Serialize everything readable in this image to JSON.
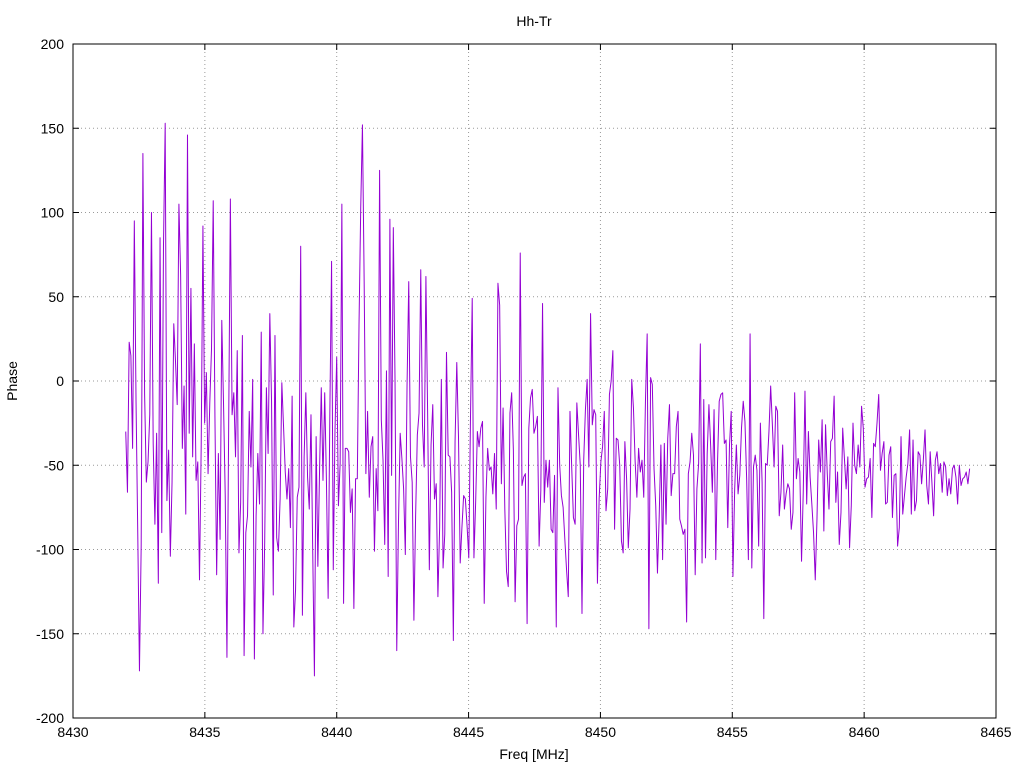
{
  "chart_data": {
    "type": "line",
    "title": "Hh-Tr",
    "xlabel": "Freq [MHz]",
    "ylabel": "Phase",
    "xlim": [
      8430,
      8465
    ],
    "ylim": [
      -200,
      200
    ],
    "xticks": [
      "8430",
      "8435",
      "8440",
      "8445",
      "8450",
      "8455",
      "8460",
      "8465"
    ],
    "yticks": [
      "200",
      "150",
      "100",
      "50",
      "0",
      "-50",
      "-100",
      "-150",
      "-200"
    ],
    "grid": true,
    "line_color": "#9400d3",
    "series": [
      {
        "x_start": 8432.0,
        "x_end": 8464.0,
        "y": [
          -30,
          -66,
          23,
          15,
          -40,
          95,
          -12,
          -90,
          -172,
          -98,
          135,
          -8,
          -60,
          -48,
          -20,
          100,
          -37,
          -85,
          -31,
          -120,
          85,
          -90,
          80,
          153,
          -71,
          -41,
          -104,
          -60,
          34,
          12,
          -14,
          105,
          63,
          -40,
          -3,
          -79,
          146,
          -31,
          55,
          -45,
          22,
          -59,
          -48,
          -118,
          -38,
          92,
          -25,
          5,
          -55,
          -13,
          19,
          107,
          -21,
          -115,
          -43,
          -94,
          36,
          -13,
          -68,
          -164,
          -28,
          108,
          -20,
          -7,
          -45,
          18,
          -102,
          -72,
          27,
          -163,
          -90,
          -80,
          -18,
          -51,
          1,
          -165,
          -80,
          -43,
          -73,
          29,
          -150,
          -96,
          -4,
          -43,
          40,
          -12,
          -127,
          27,
          -93,
          -101,
          -70,
          -1,
          -27,
          -54,
          -70,
          -52,
          -87,
          -9,
          -146,
          -124,
          -69,
          -63,
          80,
          -139,
          -45,
          -7,
          -57,
          -76,
          -20,
          -100,
          -175,
          -33,
          -110,
          -53,
          -4,
          -59,
          -7,
          -59,
          -129,
          -19,
          71,
          -112,
          -29,
          14,
          -74,
          -49,
          105,
          -132,
          -40,
          -40,
          -42,
          -78,
          -64,
          -135,
          -58,
          -58,
          33,
          103,
          152,
          59,
          -55,
          -18,
          -69,
          -39,
          -33,
          -101,
          -52,
          -77,
          125,
          -23,
          -47,
          -97,
          6,
          -116,
          96,
          -56,
          91,
          0,
          -160,
          -85,
          -31,
          -46,
          -64,
          -103,
          -3,
          59,
          -45,
          -60,
          -142,
          -80,
          -32,
          -19,
          66,
          -26,
          -51,
          62,
          -19,
          -112,
          -38,
          -14,
          -70,
          -61,
          -128,
          -87,
          1,
          -111,
          -91,
          17,
          -44,
          -45,
          -66,
          -154,
          -36,
          11,
          -33,
          -108,
          -87,
          -68,
          -70,
          -86,
          -105,
          -21,
          49,
          -105,
          -72,
          -30,
          -39,
          -28,
          -24,
          -132,
          -69,
          -40,
          -53,
          -51,
          -67,
          -43,
          -76,
          58,
          45,
          -61,
          -16,
          -76,
          -113,
          -122,
          -19,
          -7,
          -41,
          -131,
          -86,
          -82,
          76,
          -62,
          -57,
          -55,
          -144,
          -28,
          -10,
          -5,
          -31,
          -27,
          -21,
          -98,
          -65,
          46,
          -72,
          -47,
          -63,
          -47,
          -88,
          -90,
          -56,
          -146,
          -4,
          -50,
          -68,
          -75,
          -94,
          -112,
          -128,
          -18,
          -51,
          -81,
          -85,
          -13,
          -32,
          -50,
          -138,
          -47,
          -17,
          1,
          -51,
          40,
          -26,
          -17,
          -20,
          -120,
          -70,
          -48,
          -39,
          -18,
          -77,
          -64,
          -8,
          0,
          18,
          -88,
          -34,
          -35,
          -50,
          -95,
          -102,
          -36,
          -58,
          -99,
          -76,
          1,
          -16,
          -48,
          -69,
          -40,
          -54,
          -47,
          -69,
          -12,
          28,
          -147,
          2,
          -2,
          -52,
          -74,
          -114,
          -81,
          -38,
          -106,
          -37,
          -85,
          -34,
          -14,
          -68,
          -55,
          -55,
          -27,
          -18,
          -82,
          -86,
          -91,
          -88,
          -143,
          -55,
          -48,
          -31,
          -44,
          -115,
          -64,
          -49,
          22,
          -108,
          -11,
          -105,
          -43,
          -14,
          -38,
          -66,
          -17,
          -106,
          -49,
          -12,
          -8,
          -7,
          -37,
          -35,
          -87,
          -38,
          -18,
          -116,
          -65,
          -38,
          -67,
          -56,
          -28,
          -12,
          -24,
          -58,
          -106,
          28,
          -111,
          -51,
          -44,
          -53,
          -98,
          -25,
          -60,
          -141,
          -49,
          -50,
          -30,
          -3,
          -26,
          -51,
          -15,
          -18,
          -80,
          -66,
          -38,
          -76,
          -67,
          -61,
          -64,
          -88,
          -78,
          -7,
          -58,
          -46,
          -54,
          -107,
          -66,
          -6,
          -73,
          -30,
          -57,
          -73,
          -90,
          -118,
          -82,
          -35,
          -54,
          -23,
          -89,
          -26,
          -55,
          -76,
          -36,
          -34,
          -9,
          -72,
          -54,
          -97,
          -78,
          -28,
          -46,
          -64,
          -45,
          -99,
          -74,
          -25,
          -50,
          -55,
          -38,
          -51,
          -15,
          -28,
          -63,
          -58,
          -57,
          -46,
          -81,
          -37,
          -39,
          -25,
          -8,
          -53,
          -43,
          -36,
          -73,
          -72,
          -44,
          -39,
          -81,
          -56,
          -55,
          -98,
          -87,
          -33,
          -79,
          -68,
          -57,
          -49,
          -29,
          -79,
          -35,
          -77,
          -71,
          -42,
          -44,
          -61,
          -47,
          -29,
          -62,
          -73,
          -42,
          -60,
          -80,
          -47,
          -42,
          -55,
          -49,
          -66,
          -48,
          -51,
          -68,
          -58,
          -67,
          -52,
          -50,
          -57,
          -73,
          -50,
          -62,
          -58,
          -57,
          -54,
          -61,
          -52
        ]
      }
    ]
  }
}
